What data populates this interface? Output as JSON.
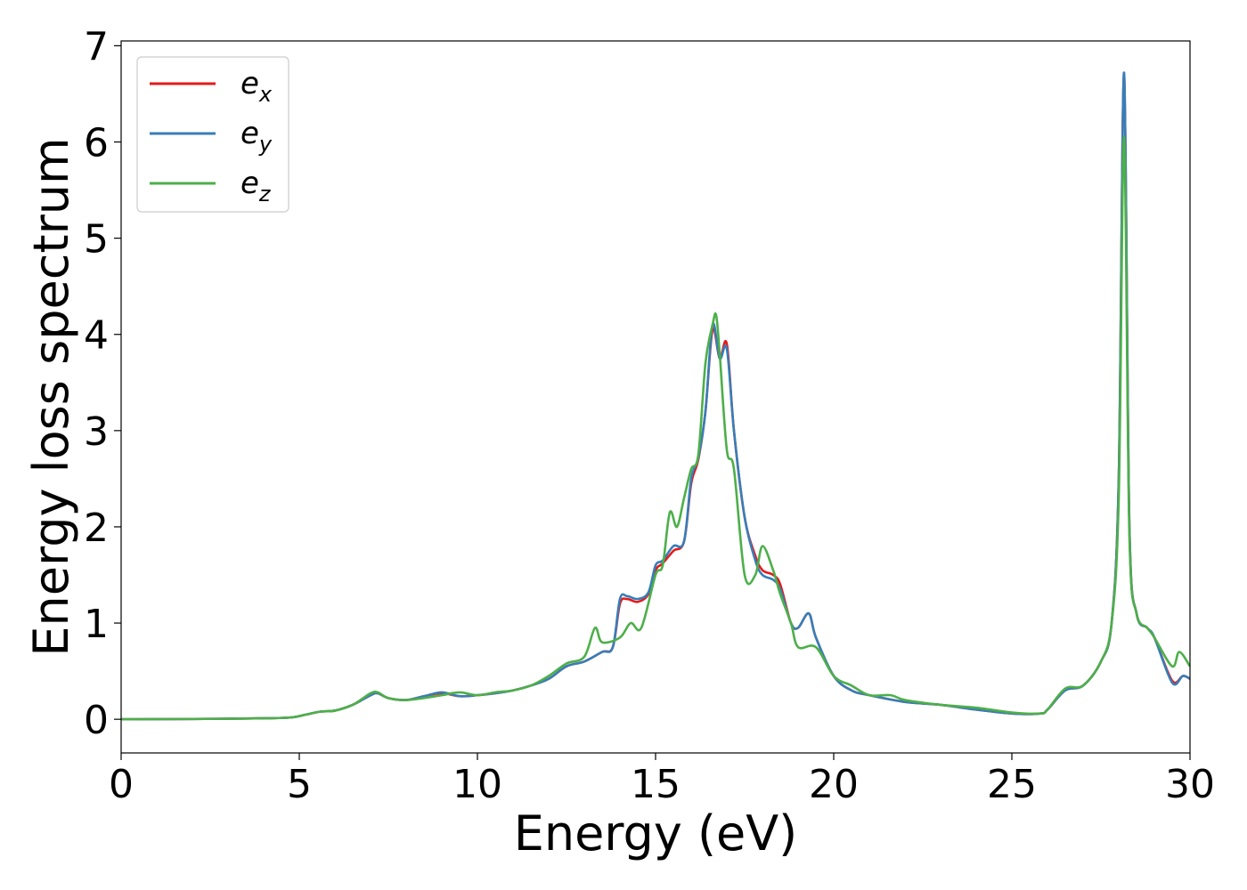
{
  "chart_data": {
    "type": "line",
    "title": "",
    "xlabel": "Energy (eV)",
    "ylabel": "Energy loss spectrum",
    "xlim": [
      0,
      30
    ],
    "ylim": [
      -0.35,
      7.05
    ],
    "xticks": [
      0,
      5,
      10,
      15,
      20,
      25,
      30
    ],
    "yticks": [
      0,
      1,
      2,
      3,
      4,
      5,
      6,
      7
    ],
    "grid": false,
    "legend_position": "top-left",
    "series": [
      {
        "name": "e",
        "name_subscript": "x",
        "color": "#e41a1c",
        "points": [
          [
            0,
            0
          ],
          [
            2,
            0.003
          ],
          [
            4,
            0.01
          ],
          [
            4.8,
            0.02
          ],
          [
            5.2,
            0.05
          ],
          [
            5.6,
            0.08
          ],
          [
            6,
            0.09
          ],
          [
            6.5,
            0.15
          ],
          [
            7,
            0.25
          ],
          [
            7.2,
            0.27
          ],
          [
            7.5,
            0.22
          ],
          [
            8,
            0.2
          ],
          [
            8.5,
            0.24
          ],
          [
            9,
            0.27
          ],
          [
            9.5,
            0.24
          ],
          [
            10,
            0.25
          ],
          [
            10.5,
            0.27
          ],
          [
            11,
            0.3
          ],
          [
            11.5,
            0.35
          ],
          [
            12,
            0.42
          ],
          [
            12.5,
            0.55
          ],
          [
            13,
            0.6
          ],
          [
            13.5,
            0.7
          ],
          [
            13.8,
            0.75
          ],
          [
            14,
            1.2
          ],
          [
            14.2,
            1.25
          ],
          [
            14.5,
            1.22
          ],
          [
            14.8,
            1.3
          ],
          [
            15,
            1.55
          ],
          [
            15.2,
            1.62
          ],
          [
            15.5,
            1.75
          ],
          [
            15.8,
            1.85
          ],
          [
            16,
            2.45
          ],
          [
            16.2,
            2.7
          ],
          [
            16.4,
            3.2
          ],
          [
            16.6,
            4.05
          ],
          [
            16.8,
            3.75
          ],
          [
            17,
            3.9
          ],
          [
            17.2,
            3.0
          ],
          [
            17.5,
            2.1
          ],
          [
            17.8,
            1.7
          ],
          [
            18,
            1.55
          ],
          [
            18.3,
            1.5
          ],
          [
            18.5,
            1.4
          ],
          [
            18.8,
            1.0
          ],
          [
            19,
            0.95
          ],
          [
            19.3,
            1.1
          ],
          [
            19.5,
            0.85
          ],
          [
            20,
            0.45
          ],
          [
            20.5,
            0.3
          ],
          [
            21,
            0.25
          ],
          [
            22,
            0.18
          ],
          [
            23,
            0.15
          ],
          [
            24,
            0.1
          ],
          [
            25,
            0.06
          ],
          [
            25.8,
            0.06
          ],
          [
            26,
            0.1
          ],
          [
            26.5,
            0.3
          ],
          [
            27,
            0.35
          ],
          [
            27.5,
            0.6
          ],
          [
            27.8,
            1.0
          ],
          [
            28,
            2.5
          ],
          [
            28.15,
            6.7
          ],
          [
            28.3,
            2.0
          ],
          [
            28.5,
            1.1
          ],
          [
            28.8,
            0.95
          ],
          [
            29,
            0.85
          ],
          [
            29.5,
            0.4
          ],
          [
            29.8,
            0.45
          ],
          [
            30,
            0.42
          ]
        ]
      },
      {
        "name": "e",
        "name_subscript": "y",
        "color": "#377eb8",
        "points": [
          [
            0,
            0
          ],
          [
            2,
            0.003
          ],
          [
            4,
            0.01
          ],
          [
            4.8,
            0.02
          ],
          [
            5.2,
            0.05
          ],
          [
            5.6,
            0.08
          ],
          [
            6,
            0.09
          ],
          [
            6.5,
            0.15
          ],
          [
            7,
            0.25
          ],
          [
            7.2,
            0.27
          ],
          [
            7.5,
            0.22
          ],
          [
            8,
            0.2
          ],
          [
            8.5,
            0.24
          ],
          [
            9,
            0.28
          ],
          [
            9.5,
            0.24
          ],
          [
            10,
            0.25
          ],
          [
            10.5,
            0.27
          ],
          [
            11,
            0.3
          ],
          [
            11.5,
            0.35
          ],
          [
            12,
            0.42
          ],
          [
            12.5,
            0.55
          ],
          [
            13,
            0.6
          ],
          [
            13.5,
            0.7
          ],
          [
            13.8,
            0.75
          ],
          [
            14,
            1.25
          ],
          [
            14.2,
            1.28
          ],
          [
            14.5,
            1.25
          ],
          [
            14.8,
            1.32
          ],
          [
            15,
            1.6
          ],
          [
            15.2,
            1.65
          ],
          [
            15.5,
            1.8
          ],
          [
            15.8,
            1.85
          ],
          [
            16,
            2.5
          ],
          [
            16.2,
            2.72
          ],
          [
            16.4,
            3.2
          ],
          [
            16.6,
            4.1
          ],
          [
            16.8,
            3.75
          ],
          [
            17,
            3.85
          ],
          [
            17.2,
            3.0
          ],
          [
            17.5,
            2.1
          ],
          [
            17.8,
            1.65
          ],
          [
            18,
            1.5
          ],
          [
            18.3,
            1.45
          ],
          [
            18.5,
            1.35
          ],
          [
            18.8,
            1.0
          ],
          [
            19,
            0.95
          ],
          [
            19.3,
            1.1
          ],
          [
            19.5,
            0.85
          ],
          [
            20,
            0.45
          ],
          [
            20.5,
            0.3
          ],
          [
            21,
            0.25
          ],
          [
            22,
            0.18
          ],
          [
            23,
            0.15
          ],
          [
            24,
            0.1
          ],
          [
            25,
            0.06
          ],
          [
            25.8,
            0.06
          ],
          [
            26,
            0.1
          ],
          [
            26.5,
            0.3
          ],
          [
            27,
            0.35
          ],
          [
            27.5,
            0.6
          ],
          [
            27.8,
            1.0
          ],
          [
            28,
            2.5
          ],
          [
            28.15,
            6.72
          ],
          [
            28.3,
            2.0
          ],
          [
            28.5,
            1.1
          ],
          [
            28.8,
            0.95
          ],
          [
            29,
            0.85
          ],
          [
            29.5,
            0.38
          ],
          [
            29.8,
            0.45
          ],
          [
            30,
            0.42
          ]
        ]
      },
      {
        "name": "e",
        "name_subscript": "z",
        "color": "#4daf4a",
        "points": [
          [
            0,
            0
          ],
          [
            2,
            0.003
          ],
          [
            4,
            0.01
          ],
          [
            4.8,
            0.02
          ],
          [
            5.2,
            0.05
          ],
          [
            5.6,
            0.08
          ],
          [
            6,
            0.09
          ],
          [
            6.5,
            0.15
          ],
          [
            7,
            0.27
          ],
          [
            7.2,
            0.28
          ],
          [
            7.5,
            0.22
          ],
          [
            8,
            0.2
          ],
          [
            8.5,
            0.22
          ],
          [
            9,
            0.25
          ],
          [
            9.5,
            0.28
          ],
          [
            10,
            0.25
          ],
          [
            10.5,
            0.28
          ],
          [
            11,
            0.3
          ],
          [
            11.5,
            0.35
          ],
          [
            12,
            0.45
          ],
          [
            12.5,
            0.58
          ],
          [
            13,
            0.65
          ],
          [
            13.3,
            0.95
          ],
          [
            13.5,
            0.8
          ],
          [
            14,
            0.85
          ],
          [
            14.3,
            1.0
          ],
          [
            14.6,
            0.95
          ],
          [
            15,
            1.5
          ],
          [
            15.2,
            1.6
          ],
          [
            15.4,
            2.15
          ],
          [
            15.6,
            2.0
          ],
          [
            15.8,
            2.3
          ],
          [
            16,
            2.6
          ],
          [
            16.2,
            2.75
          ],
          [
            16.4,
            3.7
          ],
          [
            16.6,
            4.1
          ],
          [
            16.7,
            4.2
          ],
          [
            16.8,
            3.8
          ],
          [
            17,
            2.8
          ],
          [
            17.2,
            2.6
          ],
          [
            17.5,
            1.5
          ],
          [
            17.8,
            1.5
          ],
          [
            18,
            1.8
          ],
          [
            18.3,
            1.55
          ],
          [
            18.5,
            1.3
          ],
          [
            18.8,
            1.0
          ],
          [
            19,
            0.75
          ],
          [
            19.5,
            0.75
          ],
          [
            20,
            0.45
          ],
          [
            20.5,
            0.35
          ],
          [
            21,
            0.25
          ],
          [
            21.6,
            0.25
          ],
          [
            22,
            0.2
          ],
          [
            23,
            0.15
          ],
          [
            24,
            0.12
          ],
          [
            25,
            0.07
          ],
          [
            25.8,
            0.06
          ],
          [
            26,
            0.1
          ],
          [
            26.5,
            0.32
          ],
          [
            27,
            0.35
          ],
          [
            27.5,
            0.6
          ],
          [
            27.8,
            1.0
          ],
          [
            28,
            2.3
          ],
          [
            28.15,
            6.05
          ],
          [
            28.3,
            1.9
          ],
          [
            28.5,
            1.1
          ],
          [
            28.8,
            0.95
          ],
          [
            29,
            0.85
          ],
          [
            29.5,
            0.55
          ],
          [
            29.7,
            0.7
          ],
          [
            30,
            0.55
          ]
        ]
      }
    ]
  }
}
